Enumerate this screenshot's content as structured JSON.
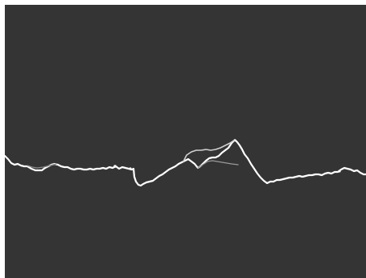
{
  "image": {
    "background_color": "#343434",
    "border_color": "#ffffff",
    "trace_color": "#ffffff",
    "faint_trace_color": "#9a9a9a"
  }
}
